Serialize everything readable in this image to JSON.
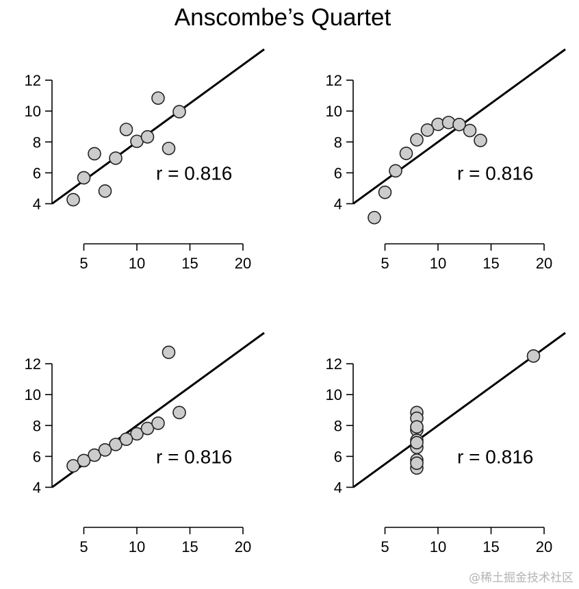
{
  "title": "Anscombe’s Quartet",
  "watermark": "@稀土掘金技术社区",
  "colors": {
    "point_fill": "#cccccc",
    "point_stroke": "#222222",
    "line": "#000000",
    "axis": "#000000"
  },
  "chart_data": [
    {
      "type": "scatter",
      "x": [
        10,
        8,
        13,
        9,
        11,
        14,
        6,
        4,
        12,
        7,
        5
      ],
      "y": [
        8.04,
        6.95,
        7.58,
        8.81,
        8.33,
        9.96,
        7.24,
        4.26,
        10.84,
        4.82,
        5.68
      ],
      "fit_line": {
        "intercept": 3.0,
        "slope": 0.5
      },
      "annotation": "r = 0.816",
      "xlim": [
        2,
        22
      ],
      "ylim": [
        3,
        14
      ],
      "xticks": [
        5,
        10,
        15,
        20
      ],
      "yticks": [
        4,
        6,
        8,
        10,
        12
      ],
      "xlabel": "",
      "ylabel": "",
      "grid": false
    },
    {
      "type": "scatter",
      "x": [
        10,
        8,
        13,
        9,
        11,
        14,
        6,
        4,
        12,
        7,
        5
      ],
      "y": [
        9.14,
        8.14,
        8.74,
        8.77,
        9.26,
        8.1,
        6.13,
        3.1,
        9.13,
        7.26,
        4.74
      ],
      "fit_line": {
        "intercept": 3.0,
        "slope": 0.5
      },
      "annotation": "r = 0.816",
      "xlim": [
        2,
        22
      ],
      "ylim": [
        3,
        14
      ],
      "xticks": [
        5,
        10,
        15,
        20
      ],
      "yticks": [
        4,
        6,
        8,
        10,
        12
      ],
      "xlabel": "",
      "ylabel": "",
      "grid": false
    },
    {
      "type": "scatter",
      "x": [
        10,
        8,
        13,
        9,
        11,
        14,
        6,
        4,
        12,
        7,
        5
      ],
      "y": [
        7.46,
        6.77,
        12.74,
        7.11,
        7.81,
        8.84,
        6.08,
        5.39,
        8.15,
        6.42,
        5.73
      ],
      "fit_line": {
        "intercept": 3.0,
        "slope": 0.5
      },
      "annotation": "r = 0.816",
      "xlim": [
        2,
        22
      ],
      "ylim": [
        3,
        14
      ],
      "xticks": [
        5,
        10,
        15,
        20
      ],
      "yticks": [
        4,
        6,
        8,
        10,
        12
      ],
      "xlabel": "",
      "ylabel": "",
      "grid": false
    },
    {
      "type": "scatter",
      "x": [
        8,
        8,
        8,
        8,
        8,
        8,
        8,
        19,
        8,
        8,
        8
      ],
      "y": [
        6.58,
        5.76,
        7.71,
        8.84,
        8.47,
        7.04,
        5.25,
        12.5,
        5.56,
        7.91,
        6.89
      ],
      "fit_line": {
        "intercept": 3.0,
        "slope": 0.5
      },
      "annotation": "r = 0.816",
      "xlim": [
        2,
        22
      ],
      "ylim": [
        3,
        14
      ],
      "xticks": [
        5,
        10,
        15,
        20
      ],
      "yticks": [
        4,
        6,
        8,
        10,
        12
      ],
      "xlabel": "",
      "ylabel": "",
      "grid": false
    }
  ]
}
